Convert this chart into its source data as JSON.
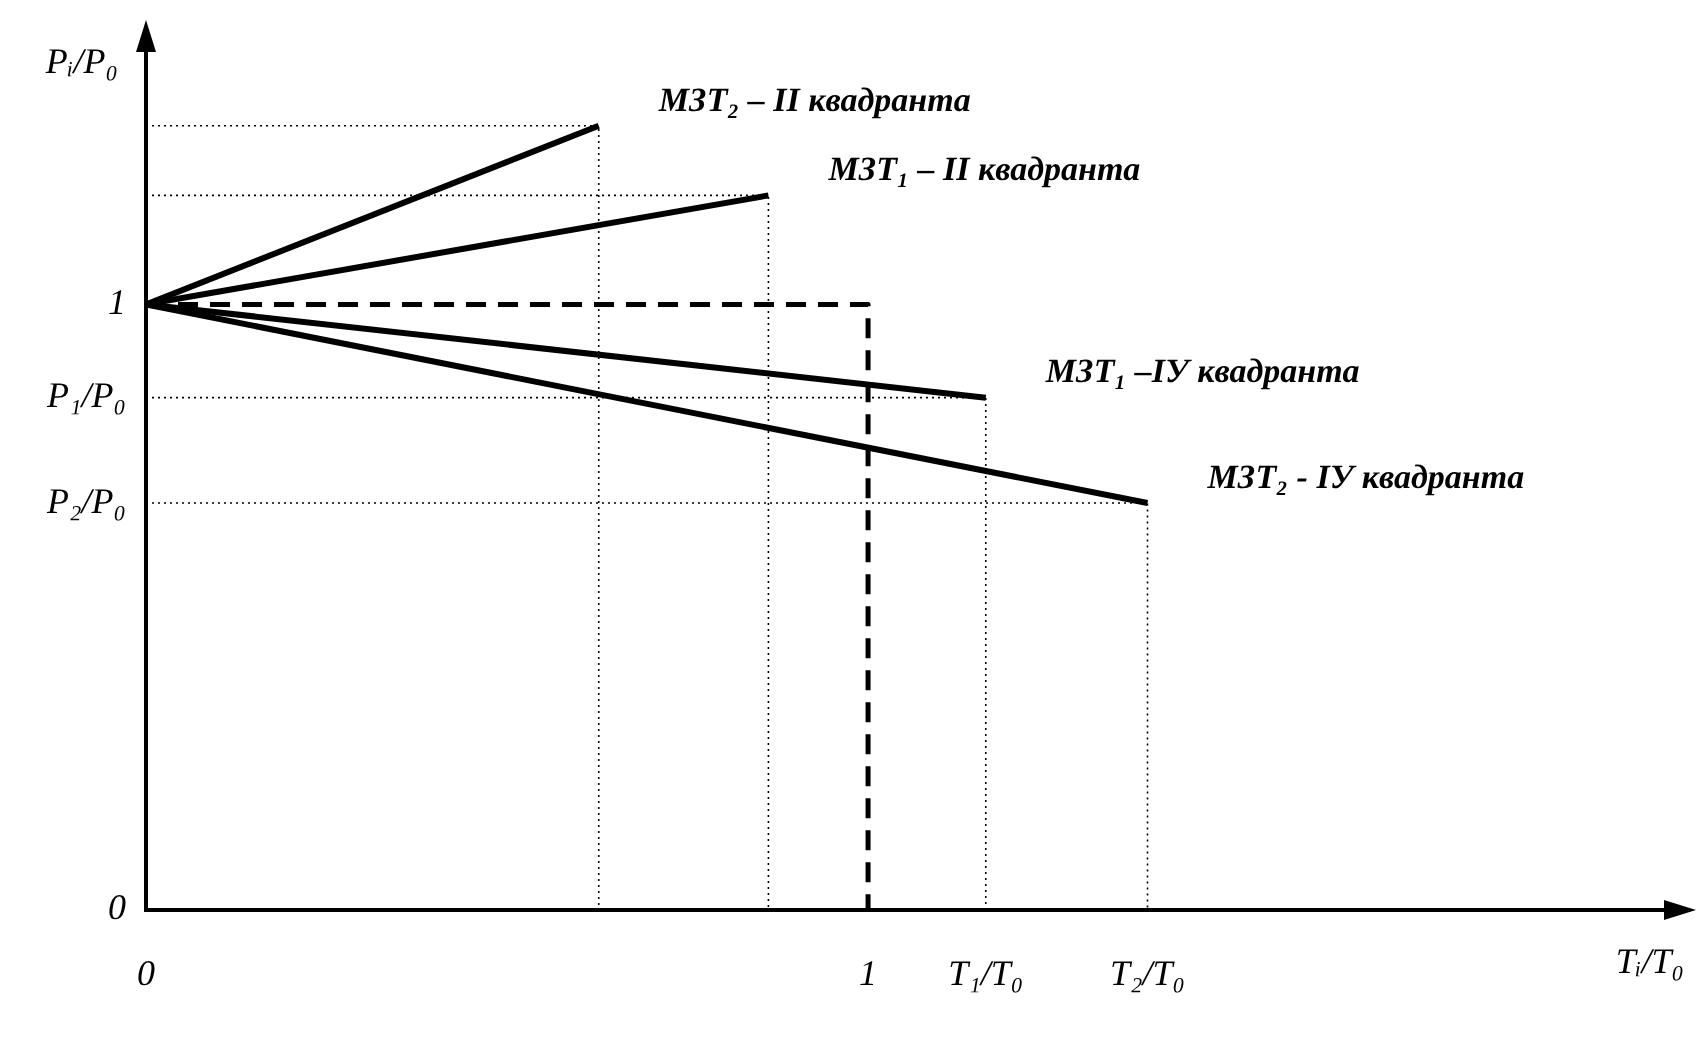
{
  "chart_data": {
    "type": "line",
    "xlabel": "Tᵢ/T₀",
    "ylabel": "Pᵢ/P₀",
    "xlim": [
      0,
      2.13
    ],
    "ylim": [
      0,
      1.43
    ],
    "xticks": [
      {
        "value": 0,
        "label": "0"
      },
      {
        "value": 1,
        "label": "1"
      },
      {
        "value": 1.163,
        "label": "T₁/T₀"
      },
      {
        "value": 1.387,
        "label": "T₂/T₀"
      }
    ],
    "yticks": [
      {
        "value": 0,
        "label": "0"
      },
      {
        "value": 1,
        "label": "1"
      },
      {
        "value": 0.846,
        "label": "P₁/P₀"
      },
      {
        "value": 0.672,
        "label": "P₂/P₀"
      }
    ],
    "grid": false,
    "legend": false,
    "marker": "none",
    "series": [
      {
        "name": "МЗТ₂ – II квадранта",
        "color": "#000000",
        "x": [
          0,
          0.627
        ],
        "values": [
          1,
          1.295
        ]
      },
      {
        "name": "МЗТ₁ – II квадранта",
        "color": "#000000",
        "x": [
          0,
          0.862
        ],
        "values": [
          1,
          1.18
        ]
      },
      {
        "name": "МЗТ₁ –IУ квадранта",
        "color": "#000000",
        "x": [
          0,
          1.163
        ],
        "values": [
          1,
          0.846
        ]
      },
      {
        "name": "МЗТ₂ - IУ квадранта",
        "color": "#000000",
        "x": [
          0,
          1.387
        ],
        "values": [
          1,
          0.672
        ]
      },
      {
        "color": "#000000",
        "line_style": "dashed",
        "x": [
          0,
          1,
          1
        ],
        "values": [
          1,
          1,
          0
        ]
      },
      {
        "color": "#000000",
        "line_style": "dotted",
        "x": [
          0,
          0.627,
          0.627
        ],
        "values": [
          1.295,
          1.295,
          0
        ]
      },
      {
        "color": "#000000",
        "line_style": "dotted",
        "x": [
          0,
          0.862,
          0.862
        ],
        "values": [
          1.18,
          1.18,
          0
        ]
      },
      {
        "color": "#000000",
        "line_style": "dotted",
        "x": [
          0,
          1.163,
          1.163
        ],
        "values": [
          0.846,
          0.846,
          0
        ]
      },
      {
        "color": "#000000",
        "line_style": "dotted",
        "x": [
          0,
          1.387,
          1.387
        ],
        "values": [
          0.672,
          0.672,
          0
        ]
      }
    ]
  }
}
